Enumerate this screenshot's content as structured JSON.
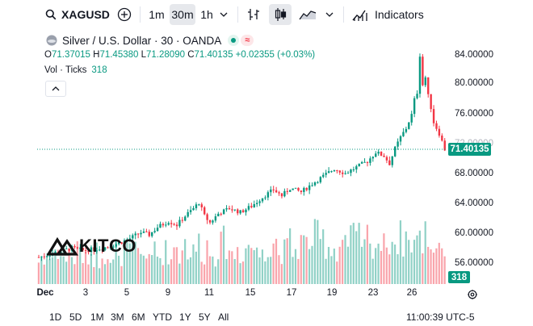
{
  "toolbar": {
    "symbol": "XAGUSD",
    "intervals": [
      "1m",
      "30m",
      "1h"
    ],
    "active_interval": "30m",
    "indicators_label": "Indicators"
  },
  "legend": {
    "title": "Silver / U.S. Dollar · 30 · OANDA",
    "o_label": "O",
    "o": "71.37015",
    "h_label": "H",
    "h": "71.45380",
    "l_label": "L",
    "l": "71.28090",
    "c_label": "C",
    "c": "71.40135",
    "change": "+0.02355 (+0.03%)",
    "vol_label": "Vol · Ticks",
    "vol_value": "318"
  },
  "price_axis": {
    "ticks": [
      "84.00000",
      "80.00000",
      "76.00000",
      "72.00000",
      "68.00000",
      "64.00000",
      "60.00000",
      "56.00000"
    ],
    "current_price": "71.40135",
    "current_volume": "318"
  },
  "time_axis": [
    "Dec",
    "3",
    "5",
    "9",
    "11",
    "15",
    "17",
    "19",
    "23",
    "26"
  ],
  "ranges": [
    "1D",
    "5D",
    "1M",
    "3M",
    "6M",
    "YTD",
    "1Y",
    "5Y",
    "All"
  ],
  "clock": "11:00:39 UTC-5",
  "watermark": "KITCO",
  "colors": {
    "up": "#089981",
    "down": "#f23645",
    "accent": "#2962ff"
  },
  "chart_data": {
    "type": "candlestick",
    "title": "Silver / U.S. Dollar · 30 · OANDA",
    "x_labels": [
      "Dec",
      "3",
      "5",
      "9",
      "11",
      "15",
      "17",
      "19",
      "23",
      "26"
    ],
    "ylim": [
      54,
      86
    ],
    "y_ticks": [
      56,
      60,
      64,
      68,
      72,
      76,
      80,
      84
    ],
    "last_price": 71.40135,
    "path": [
      [
        0,
        57.0
      ],
      [
        6,
        57.6
      ],
      [
        12,
        58.2
      ],
      [
        16,
        57.9
      ],
      [
        21,
        58.1
      ],
      [
        25,
        58.4
      ],
      [
        29,
        58.9
      ],
      [
        33,
        59.5
      ],
      [
        37,
        60.3
      ],
      [
        40,
        60.0
      ],
      [
        43,
        61.0
      ],
      [
        47,
        61.8
      ],
      [
        50,
        61.3
      ],
      [
        53,
        62.5
      ],
      [
        56,
        63.5
      ],
      [
        58,
        64.3
      ],
      [
        60,
        62.5
      ],
      [
        62,
        61.6
      ],
      [
        65,
        62.8
      ],
      [
        69,
        63.5
      ],
      [
        73,
        63.0
      ],
      [
        77,
        63.8
      ],
      [
        81,
        65.0
      ],
      [
        85,
        66.0
      ],
      [
        88,
        65.2
      ],
      [
        91,
        66.2
      ],
      [
        95,
        65.7
      ],
      [
        99,
        66.8
      ],
      [
        103,
        67.8
      ],
      [
        107,
        68.8
      ],
      [
        111,
        68.2
      ],
      [
        115,
        69.0
      ],
      [
        119,
        69.8
      ],
      [
        122,
        71.0
      ],
      [
        125,
        70.5
      ],
      [
        127,
        69.5
      ],
      [
        129,
        71.5
      ],
      [
        131,
        73.0
      ],
      [
        133,
        74.2
      ],
      [
        135,
        76.0
      ],
      [
        136,
        78.0
      ],
      [
        137,
        79.0
      ],
      [
        138,
        84.0
      ],
      [
        139,
        80.0
      ],
      [
        140,
        81.0
      ],
      [
        141,
        78.5
      ],
      [
        142,
        77.0
      ],
      [
        143,
        75.0
      ],
      [
        145,
        73.5
      ],
      [
        147,
        71.4
      ]
    ]
  }
}
